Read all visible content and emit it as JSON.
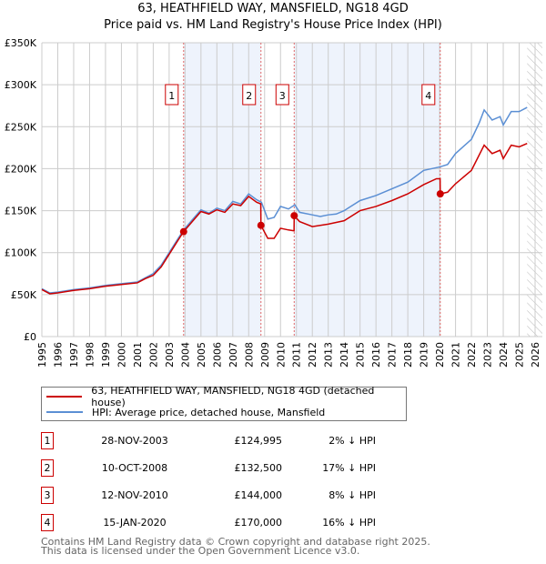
{
  "chart_data": {
    "type": "line",
    "title": "63, HEATHFIELD WAY, MANSFIELD, NG18 4GD",
    "subtitle": "Price paid vs. HM Land Registry's House Price Index (HPI)",
    "xlim": [
      1995,
      2026
    ],
    "ylim": [
      0,
      350000
    ],
    "x_ticks": [
      "1995",
      "1996",
      "1997",
      "1998",
      "1999",
      "2000",
      "2001",
      "2002",
      "2003",
      "2004",
      "2005",
      "2006",
      "2007",
      "2008",
      "2009",
      "2010",
      "2011",
      "2012",
      "2013",
      "2014",
      "2015",
      "2016",
      "2017",
      "2018",
      "2019",
      "2020",
      "2021",
      "2022",
      "2023",
      "2024",
      "2025",
      "2026"
    ],
    "y_ticks": [
      {
        "v": 0,
        "label": "£0"
      },
      {
        "v": 50000,
        "label": "£50K"
      },
      {
        "v": 100000,
        "label": "£100K"
      },
      {
        "v": 150000,
        "label": "£150K"
      },
      {
        "v": 200000,
        "label": "£200K"
      },
      {
        "v": 250000,
        "label": "£250K"
      },
      {
        "v": 300000,
        "label": "£300K"
      },
      {
        "v": 350000,
        "label": "£350K"
      }
    ],
    "grid": true,
    "shaded_ranges": [
      [
        2003.91,
        2008.77
      ],
      [
        2010.86,
        2020.04
      ]
    ],
    "forecast_hatch_from": 2025.5,
    "series": [
      {
        "name": "63, HEATHFIELD WAY, MANSFIELD, NG18 4GD (detached house)",
        "color": "#cc0000",
        "x": [
          1995,
          1995.5,
          1996,
          1997,
          1998,
          1999,
          2000,
          2001,
          2001.5,
          2002,
          2002.5,
          2003,
          2003.5,
          2003.91,
          2004.5,
          2005,
          2005.5,
          2006,
          2006.5,
          2007,
          2007.5,
          2008,
          2008.5,
          2008.76,
          2008.77,
          2009.2,
          2009.6,
          2010,
          2010.5,
          2010.85,
          2010.86,
          2011.2,
          2012,
          2013,
          2014,
          2015,
          2016,
          2017,
          2018,
          2019,
          2019.8,
          2020.03,
          2020.04,
          2020.5,
          2021,
          2022,
          2022.8,
          2023.3,
          2023.8,
          2024,
          2024.5,
          2025,
          2025.5
        ],
        "y": [
          56000,
          51000,
          52000,
          55000,
          57000,
          60000,
          62000,
          64000,
          69000,
          73000,
          83000,
          98000,
          113000,
          124995,
          138000,
          149000,
          146000,
          151000,
          148000,
          158000,
          156000,
          167000,
          160000,
          158000,
          132500,
          117000,
          117000,
          129000,
          127000,
          126000,
          144000,
          137000,
          131000,
          134000,
          138000,
          150000,
          155000,
          162000,
          170000,
          181000,
          188000,
          188000,
          170000,
          172000,
          182000,
          198000,
          228000,
          218000,
          222000,
          212000,
          228000,
          226000,
          230000
        ]
      },
      {
        "name": "HPI: Average price, detached house, Mansfield",
        "color": "#5b8fd4",
        "x": [
          1995,
          1995.5,
          1996,
          1997,
          1998,
          1999,
          2000,
          2001,
          2001.5,
          2002,
          2002.5,
          2003,
          2003.5,
          2003.91,
          2004.5,
          2005,
          2005.5,
          2006,
          2006.5,
          2007,
          2007.5,
          2008,
          2008.5,
          2008.8,
          2009.2,
          2009.6,
          2010,
          2010.5,
          2010.9,
          2011.2,
          2012,
          2012.5,
          2013,
          2013.5,
          2014,
          2015,
          2016,
          2017,
          2018,
          2019,
          2019.5,
          2020,
          2020.5,
          2021,
          2022,
          2022.5,
          2022.8,
          2023.3,
          2023.8,
          2024,
          2024.5,
          2025,
          2025.5
        ],
        "y": [
          57000,
          52000,
          53000,
          56000,
          58000,
          61000,
          63000,
          65000,
          70000,
          75000,
          85000,
          100000,
          115000,
          127000,
          140000,
          151000,
          147000,
          153000,
          150000,
          161000,
          158000,
          170000,
          163000,
          160000,
          140000,
          142000,
          155000,
          152000,
          157000,
          148000,
          145000,
          143000,
          145000,
          146000,
          150000,
          162000,
          168000,
          176000,
          184000,
          198000,
          200000,
          202000,
          205000,
          218000,
          235000,
          255000,
          270000,
          258000,
          262000,
          252000,
          268000,
          268000,
          273000
        ]
      }
    ],
    "sales": [
      {
        "n": "1",
        "x": 2003.91,
        "y": 124995,
        "date": "28-NOV-2003",
        "price": "£124,995",
        "hpi": "2% ↓ HPI"
      },
      {
        "n": "2",
        "x": 2008.77,
        "y": 132500,
        "date": "10-OCT-2008",
        "price": "£132,500",
        "hpi": "17% ↓ HPI"
      },
      {
        "n": "3",
        "x": 2010.86,
        "y": 144000,
        "date": "12-NOV-2010",
        "price": "£144,000",
        "hpi": "8% ↓ HPI"
      },
      {
        "n": "4",
        "x": 2020.04,
        "y": 170000,
        "date": "15-JAN-2020",
        "price": "£170,000",
        "hpi": "16% ↓ HPI"
      }
    ],
    "footer": [
      "Contains HM Land Registry data © Crown copyright and database right 2025.",
      "This data is licensed under the Open Government Licence v3.0."
    ]
  }
}
